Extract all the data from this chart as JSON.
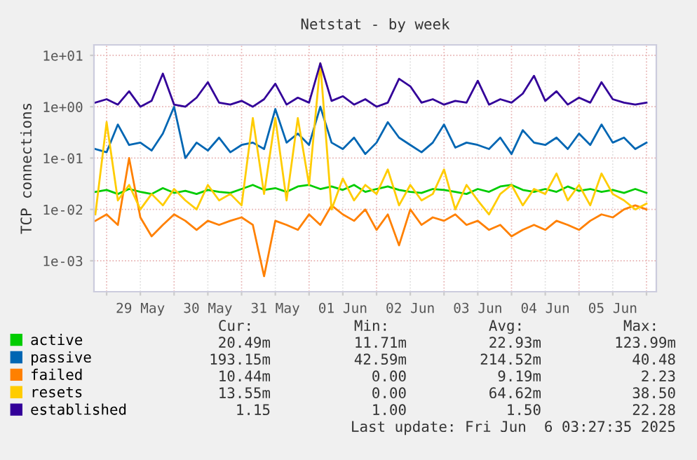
{
  "chart_data": {
    "type": "line",
    "title": "Netstat - by week",
    "ylabel": "TCP connections",
    "log": "y",
    "grid": true,
    "legend": "bottom",
    "marker": "none",
    "line_style": "solid",
    "x": [
      "2025-05-28T20:00",
      "2025-05-29T00:00",
      "2025-05-29T04:00",
      "2025-05-29T08:00",
      "2025-05-29T12:00",
      "2025-05-29T16:00",
      "2025-05-29T20:00",
      "2025-05-30T00:00",
      "2025-05-30T04:00",
      "2025-05-30T08:00",
      "2025-05-30T12:00",
      "2025-05-30T16:00",
      "2025-05-30T20:00",
      "2025-05-31T00:00",
      "2025-05-31T04:00",
      "2025-05-31T08:00",
      "2025-05-31T12:00",
      "2025-05-31T16:00",
      "2025-05-31T20:00",
      "2025-06-01T00:00",
      "2025-06-01T04:00",
      "2025-06-01T08:00",
      "2025-06-01T12:00",
      "2025-06-01T16:00",
      "2025-06-01T20:00",
      "2025-06-02T00:00",
      "2025-06-02T04:00",
      "2025-06-02T08:00",
      "2025-06-02T12:00",
      "2025-06-02T16:00",
      "2025-06-02T20:00",
      "2025-06-03T00:00",
      "2025-06-03T04:00",
      "2025-06-03T08:00",
      "2025-06-03T12:00",
      "2025-06-03T16:00",
      "2025-06-03T20:00",
      "2025-06-04T00:00",
      "2025-06-04T04:00",
      "2025-06-04T08:00",
      "2025-06-04T12:00",
      "2025-06-04T16:00",
      "2025-06-04T20:00",
      "2025-06-05T00:00",
      "2025-06-05T04:00",
      "2025-06-05T08:00",
      "2025-06-05T12:00",
      "2025-06-05T16:00",
      "2025-06-05T20:00",
      "2025-06-06T00:00"
    ],
    "series": [
      {
        "name": "active",
        "color": "#00cc00",
        "values": [
          0.022,
          0.024,
          0.02,
          0.025,
          0.022,
          0.02,
          0.026,
          0.021,
          0.023,
          0.02,
          0.024,
          0.022,
          0.021,
          0.025,
          0.03,
          0.024,
          0.026,
          0.022,
          0.028,
          0.03,
          0.025,
          0.028,
          0.024,
          0.03,
          0.022,
          0.025,
          0.028,
          0.024,
          0.022,
          0.021,
          0.025,
          0.024,
          0.022,
          0.02,
          0.025,
          0.022,
          0.028,
          0.03,
          0.024,
          0.022,
          0.025,
          0.022,
          0.028,
          0.023,
          0.025,
          0.022,
          0.024,
          0.021,
          0.025,
          0.021
        ]
      },
      {
        "name": "passive",
        "color": "#0066b3",
        "values": [
          0.15,
          0.13,
          0.45,
          0.18,
          0.2,
          0.14,
          0.3,
          1.0,
          0.1,
          0.2,
          0.14,
          0.25,
          0.13,
          0.18,
          0.2,
          0.15,
          0.9,
          0.2,
          0.3,
          0.18,
          1.0,
          0.2,
          0.15,
          0.25,
          0.12,
          0.2,
          0.5,
          0.25,
          0.18,
          0.13,
          0.2,
          0.45,
          0.16,
          0.2,
          0.18,
          0.15,
          0.25,
          0.12,
          0.35,
          0.2,
          0.18,
          0.25,
          0.15,
          0.3,
          0.18,
          0.45,
          0.2,
          0.25,
          0.15,
          0.2
        ]
      },
      {
        "name": "failed",
        "color": "#ff8000",
        "values": [
          0.006,
          0.008,
          0.005,
          0.1,
          0.007,
          0.003,
          0.005,
          0.008,
          0.006,
          0.004,
          0.006,
          0.005,
          0.006,
          0.007,
          0.005,
          0.0005,
          0.006,
          0.005,
          0.004,
          0.008,
          0.005,
          0.012,
          0.008,
          0.006,
          0.01,
          0.004,
          0.008,
          0.002,
          0.01,
          0.005,
          0.007,
          0.006,
          0.008,
          0.005,
          0.006,
          0.004,
          0.005,
          0.003,
          0.004,
          0.005,
          0.004,
          0.006,
          0.005,
          0.004,
          0.006,
          0.008,
          0.007,
          0.01,
          0.012,
          0.01
        ]
      },
      {
        "name": "resets",
        "color": "#ffcc00",
        "values": [
          0.008,
          0.5,
          0.015,
          0.03,
          0.01,
          0.02,
          0.012,
          0.025,
          0.015,
          0.01,
          0.03,
          0.015,
          0.02,
          0.012,
          0.6,
          0.02,
          0.6,
          0.015,
          0.6,
          0.03,
          7.0,
          0.01,
          0.04,
          0.015,
          0.03,
          0.02,
          0.06,
          0.012,
          0.03,
          0.015,
          0.02,
          0.06,
          0.01,
          0.03,
          0.015,
          0.008,
          0.02,
          0.03,
          0.012,
          0.025,
          0.02,
          0.05,
          0.015,
          0.03,
          0.012,
          0.05,
          0.02,
          0.015,
          0.01,
          0.013
        ]
      },
      {
        "name": "established",
        "color": "#330099",
        "values": [
          1.2,
          1.4,
          1.1,
          2.0,
          1.0,
          1.3,
          4.4,
          1.1,
          1.0,
          1.5,
          3.0,
          1.2,
          1.1,
          1.3,
          1.0,
          1.4,
          2.8,
          1.1,
          1.5,
          1.2,
          7.0,
          1.3,
          1.6,
          1.1,
          1.4,
          1.0,
          1.2,
          3.5,
          2.5,
          1.2,
          1.4,
          1.1,
          1.3,
          1.2,
          3.2,
          1.1,
          1.4,
          1.2,
          1.8,
          4.0,
          1.3,
          2.0,
          1.1,
          1.5,
          1.2,
          3.0,
          1.4,
          1.2,
          1.1,
          1.2
        ]
      }
    ],
    "xlim": [
      "2025-05-28T19:30",
      "2025-06-06T03:30"
    ],
    "xticks": [
      {
        "value": "2025-05-29T00:00",
        "label": null
      },
      {
        "value": "2025-05-29T12:00",
        "label": "29 May"
      },
      {
        "value": "2025-05-30T00:00",
        "label": null
      },
      {
        "value": "2025-05-30T12:00",
        "label": "30 May"
      },
      {
        "value": "2025-05-31T00:00",
        "label": null
      },
      {
        "value": "2025-05-31T12:00",
        "label": "31 May"
      },
      {
        "value": "2025-06-01T00:00",
        "label": null
      },
      {
        "value": "2025-06-01T12:00",
        "label": "01 Jun"
      },
      {
        "value": "2025-06-02T00:00",
        "label": null
      },
      {
        "value": "2025-06-02T12:00",
        "label": "02 Jun"
      },
      {
        "value": "2025-06-03T00:00",
        "label": null
      },
      {
        "value": "2025-06-03T12:00",
        "label": "03 Jun"
      },
      {
        "value": "2025-06-04T00:00",
        "label": null
      },
      {
        "value": "2025-06-04T12:00",
        "label": "04 Jun"
      },
      {
        "value": "2025-06-05T00:00",
        "label": null
      },
      {
        "value": "2025-06-05T12:00",
        "label": "05 Jun"
      },
      {
        "value": "2025-06-06T00:00",
        "label": null
      }
    ],
    "ylim": [
      0.00025,
      16
    ],
    "yticks": [
      {
        "value": 0.001,
        "label": "1e-03"
      },
      {
        "value": 0.01,
        "label": "1e-02"
      },
      {
        "value": 0.1,
        "label": "1e-01"
      },
      {
        "value": 1,
        "label": "1e+00"
      },
      {
        "value": 10,
        "label": "1e+01"
      }
    ],
    "annotations": [
      "Cur:",
      "Min:",
      "Avg:",
      "Max:",
      "20.49m",
      "11.71m",
      "22.93m",
      "123.99m",
      "193.15m",
      "42.59m",
      "214.52m",
      "40.48",
      "10.44m",
      "0.00",
      "9.19m",
      "2.23",
      "13.55m",
      "0.00",
      "64.62m",
      "38.50",
      "1.15",
      "1.00",
      "1.50",
      "22.28",
      "Last update: Fri Jun  6 03:27:35 2025"
    ]
  }
}
